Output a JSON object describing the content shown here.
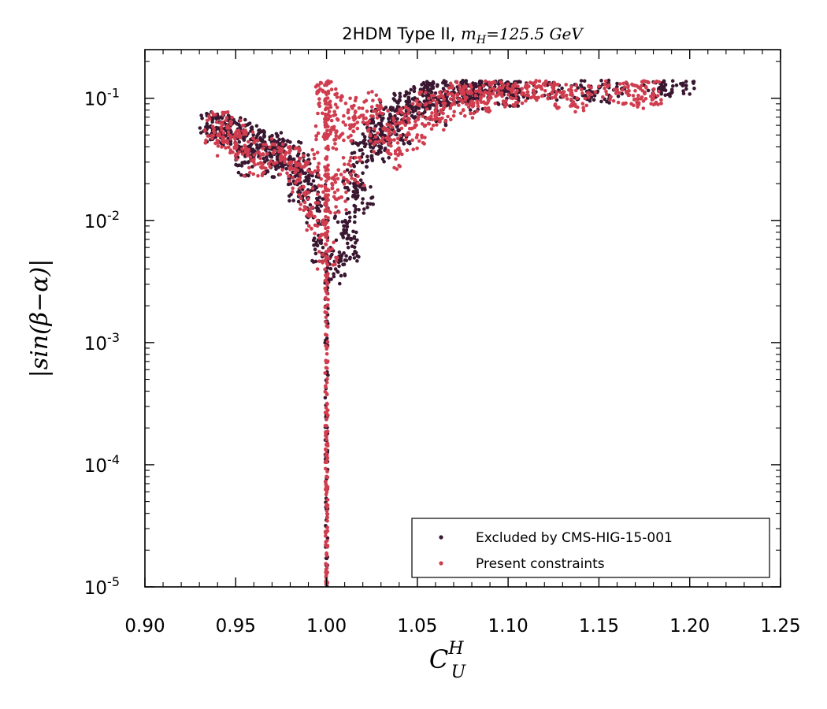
{
  "chart_data": {
    "type": "scatter",
    "title": "2HDM Type II, ",
    "title_math": "m_H = 125.5 GeV",
    "title_math_var": "m",
    "title_math_sub": "H",
    "title_math_rest": "=125.5 GeV",
    "xlabel": "C_U^H",
    "xlabel_main": "C",
    "xlabel_sub": "U",
    "xlabel_sup": "H",
    "ylabel": "|sin(β−α)|",
    "xlim": [
      0.9,
      1.25
    ],
    "ylim": [
      1e-05,
      0.25
    ],
    "yscale": "log",
    "xticks": [
      "0.90",
      "0.95",
      "1.00",
      "1.05",
      "1.10",
      "1.15",
      "1.20",
      "1.25"
    ],
    "yticks": [
      {
        "base": "10",
        "exp": "-5",
        "value": 1e-05
      },
      {
        "base": "10",
        "exp": "-4",
        "value": 0.0001
      },
      {
        "base": "10",
        "exp": "-3",
        "value": 0.001
      },
      {
        "base": "10",
        "exp": "-2",
        "value": 0.01
      },
      {
        "base": "10",
        "exp": "-1",
        "value": 0.1
      }
    ],
    "grid": false,
    "legend_position": "bottom-right",
    "series": [
      {
        "name": "Excluded by CMS-HIG-15-001",
        "color": "#3a1730",
        "points": [
          [
            0.935,
            0.058
          ],
          [
            0.94,
            0.057
          ],
          [
            0.945,
            0.055
          ],
          [
            0.95,
            0.052
          ],
          [
            0.955,
            0.048
          ],
          [
            0.96,
            0.045
          ],
          [
            0.965,
            0.042
          ],
          [
            0.97,
            0.04
          ],
          [
            0.975,
            0.037
          ],
          [
            0.98,
            0.033
          ],
          [
            0.985,
            0.027
          ],
          [
            0.99,
            0.02
          ],
          [
            0.995,
            0.012
          ],
          [
            0.998,
            0.006
          ],
          [
            1.005,
            0.004
          ],
          [
            1.01,
            0.009
          ],
          [
            1.015,
            0.02
          ],
          [
            1.02,
            0.035
          ],
          [
            1.025,
            0.05
          ],
          [
            1.03,
            0.062
          ],
          [
            1.035,
            0.072
          ],
          [
            1.04,
            0.082
          ],
          [
            1.045,
            0.09
          ],
          [
            1.05,
            0.098
          ],
          [
            1.055,
            0.105
          ],
          [
            1.06,
            0.11
          ],
          [
            1.065,
            0.115
          ],
          [
            1.07,
            0.12
          ],
          [
            1.075,
            0.124
          ],
          [
            1.08,
            0.128
          ],
          [
            1.085,
            0.131
          ],
          [
            1.09,
            0.133
          ],
          [
            1.095,
            0.134
          ],
          [
            1.1,
            0.135
          ],
          [
            1.105,
            0.135
          ],
          [
            1.11,
            0.133
          ],
          [
            1.125,
            0.125
          ],
          [
            1.14,
            0.128
          ],
          [
            1.15,
            0.122
          ],
          [
            1.16,
            0.132
          ],
          [
            1.18,
            0.136
          ],
          [
            1.185,
            0.134
          ],
          [
            1.198,
            0.137
          ],
          [
            1.03,
            0.04
          ],
          [
            1.04,
            0.055
          ],
          [
            1.06,
            0.08
          ],
          [
            1.08,
            0.1
          ],
          [
            1.1,
            0.115
          ],
          [
            0.955,
            0.03
          ],
          [
            0.97,
            0.03
          ],
          [
            0.985,
            0.018
          ],
          [
            1.012,
            0.006
          ],
          [
            1.02,
            0.015
          ]
        ]
      },
      {
        "name": "Present constraints",
        "color": "#d03d4e",
        "points": [
          [
            0.938,
            0.056
          ],
          [
            0.942,
            0.058
          ],
          [
            0.95,
            0.05
          ],
          [
            0.955,
            0.041
          ],
          [
            0.96,
            0.03
          ],
          [
            0.965,
            0.035
          ],
          [
            0.975,
            0.034
          ],
          [
            0.98,
            0.03
          ],
          [
            0.985,
            0.022
          ],
          [
            0.99,
            0.015
          ],
          [
            0.995,
            0.009
          ],
          [
            1.0,
            0.135
          ],
          [
            1.0,
            0.1
          ],
          [
            1.0,
            0.06
          ],
          [
            1.003,
            0.02
          ],
          [
            1.008,
            0.05
          ],
          [
            1.012,
            0.08
          ],
          [
            1.018,
            0.07
          ],
          [
            1.025,
            0.085
          ],
          [
            1.03,
            0.045
          ],
          [
            1.035,
            0.06
          ],
          [
            1.045,
            0.075
          ],
          [
            1.05,
            0.05
          ],
          [
            1.055,
            0.09
          ],
          [
            1.06,
            0.07
          ],
          [
            1.065,
            0.085
          ],
          [
            1.07,
            0.105
          ],
          [
            1.075,
            0.092
          ],
          [
            1.08,
            0.11
          ],
          [
            1.085,
            0.1
          ],
          [
            1.09,
            0.118
          ],
          [
            1.095,
            0.112
          ],
          [
            1.1,
            0.12
          ],
          [
            1.105,
            0.115
          ],
          [
            1.11,
            0.13
          ],
          [
            1.115,
            0.125
          ],
          [
            1.12,
            0.132
          ],
          [
            1.125,
            0.128
          ],
          [
            1.13,
            0.11
          ],
          [
            1.138,
            0.1
          ],
          [
            1.15,
            0.125
          ],
          [
            1.16,
            0.118
          ],
          [
            1.165,
            0.135
          ],
          [
            1.17,
            0.115
          ],
          [
            1.175,
            0.112
          ],
          [
            1.18,
            0.11
          ],
          [
            0.945,
            0.045
          ],
          [
            0.99,
            0.03
          ],
          [
            1.04,
            0.035
          ],
          [
            1.015,
            0.025
          ],
          [
            1.005,
            0.015
          ],
          [
            1.0,
            0.005
          ]
        ]
      }
    ]
  }
}
